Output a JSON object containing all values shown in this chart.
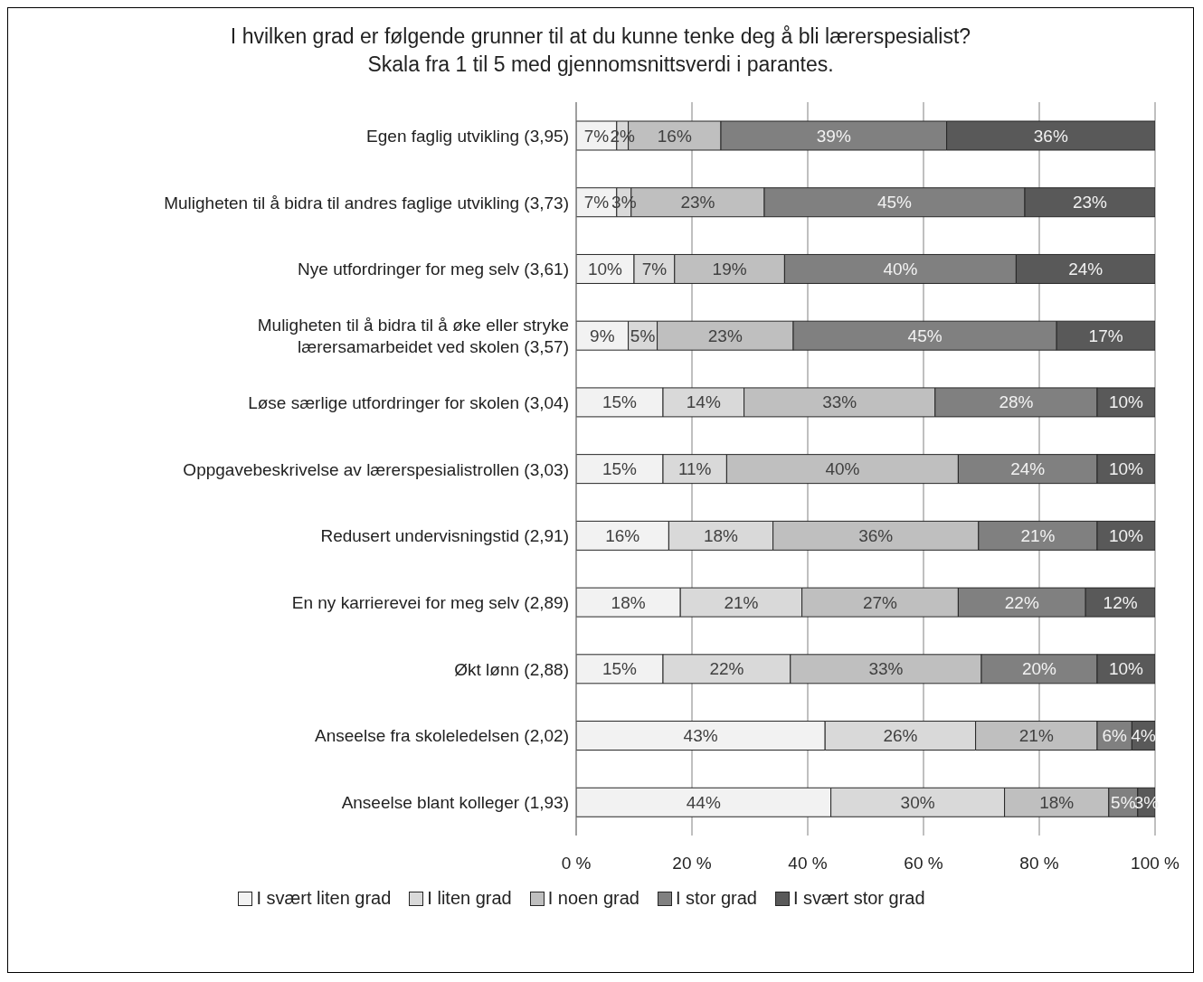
{
  "chart_data": {
    "type": "bar",
    "orientation": "horizontal",
    "stacked": true,
    "title": "I hvilken grad er følgende grunner til at du kunne tenke deg å bli lærerspesialist?",
    "subtitle": "Skala fra 1 til 5 med gjennomsnittsverdi i parantes.",
    "categories": [
      "Egen faglig utvikling (3,95)",
      "Muligheten til å bidra til andres faglige utvikling (3,73)",
      "Nye utfordringer for meg selv (3,61)",
      "Muligheten til å bidra til å øke eller stryke lærersamarbeidet ved skolen (3,57)",
      "Løse særlige utfordringer for skolen (3,04)",
      "Oppgavebeskrivelse av lærerspesialistrollen (3,03)",
      "Redusert undervisningstid (2,91)",
      "En ny karrierevei for meg selv (2,89)",
      "Økt lønn (2,88)",
      "Anseelse fra skoleledelsen (2,02)",
      "Anseelse blant kolleger (1,93)"
    ],
    "series": [
      {
        "name": "I svært liten grad",
        "color": "#f2f2f2",
        "values": [
          7,
          7,
          10,
          9,
          15,
          15,
          16,
          18,
          15,
          43,
          44
        ],
        "value_labels": [
          "7%",
          "7%",
          "10%",
          "9%",
          "15%",
          "15%",
          "16%",
          "18%",
          "15%",
          "43%",
          "44%"
        ]
      },
      {
        "name": "I liten grad",
        "color": "#d9d9d9",
        "values": [
          2,
          2.5,
          7,
          5,
          14,
          11,
          18,
          21,
          22,
          26,
          30
        ],
        "value_labels": [
          "2%",
          "3%",
          "7%",
          "5%",
          "14%",
          "11%",
          "18%",
          "21%",
          "22%",
          "26%",
          "30%"
        ]
      },
      {
        "name": "I noen grad",
        "color": "#bfbfbf",
        "values": [
          16,
          23,
          19,
          23.5,
          33,
          40,
          35.5,
          27,
          33,
          21,
          18
        ],
        "value_labels": [
          "16%",
          "23%",
          "19%",
          "23%",
          "33%",
          "40%",
          "36%",
          "27%",
          "33%",
          "21%",
          "18%"
        ]
      },
      {
        "name": "I stor grad",
        "color": "#808080",
        "values": [
          39,
          45,
          40,
          45.5,
          28,
          24,
          20.5,
          22,
          20,
          6,
          5
        ],
        "value_labels": [
          "39%",
          "45%",
          "40%",
          "45%",
          "28%",
          "24%",
          "21%",
          "22%",
          "20%",
          "6%",
          "5%"
        ]
      },
      {
        "name": "I svært stor grad",
        "color": "#595959",
        "values": [
          36,
          22.5,
          24,
          17,
          10,
          10,
          10,
          12,
          10,
          4,
          3
        ],
        "value_labels": [
          "36%",
          "23%",
          "24%",
          "17%",
          "10%",
          "10%",
          "10%",
          "12%",
          "10%",
          "4%",
          "3%"
        ]
      }
    ],
    "xlim": [
      0,
      100
    ],
    "xticks": [
      {
        "value": 0,
        "label": "0 %"
      },
      {
        "value": 20,
        "label": "20 %"
      },
      {
        "value": 40,
        "label": "40 %"
      },
      {
        "value": 60,
        "label": "60 %"
      },
      {
        "value": 80,
        "label": "80 %"
      },
      {
        "value": 100,
        "label": "100 %"
      }
    ],
    "grid": "x",
    "legend": "bottom"
  }
}
